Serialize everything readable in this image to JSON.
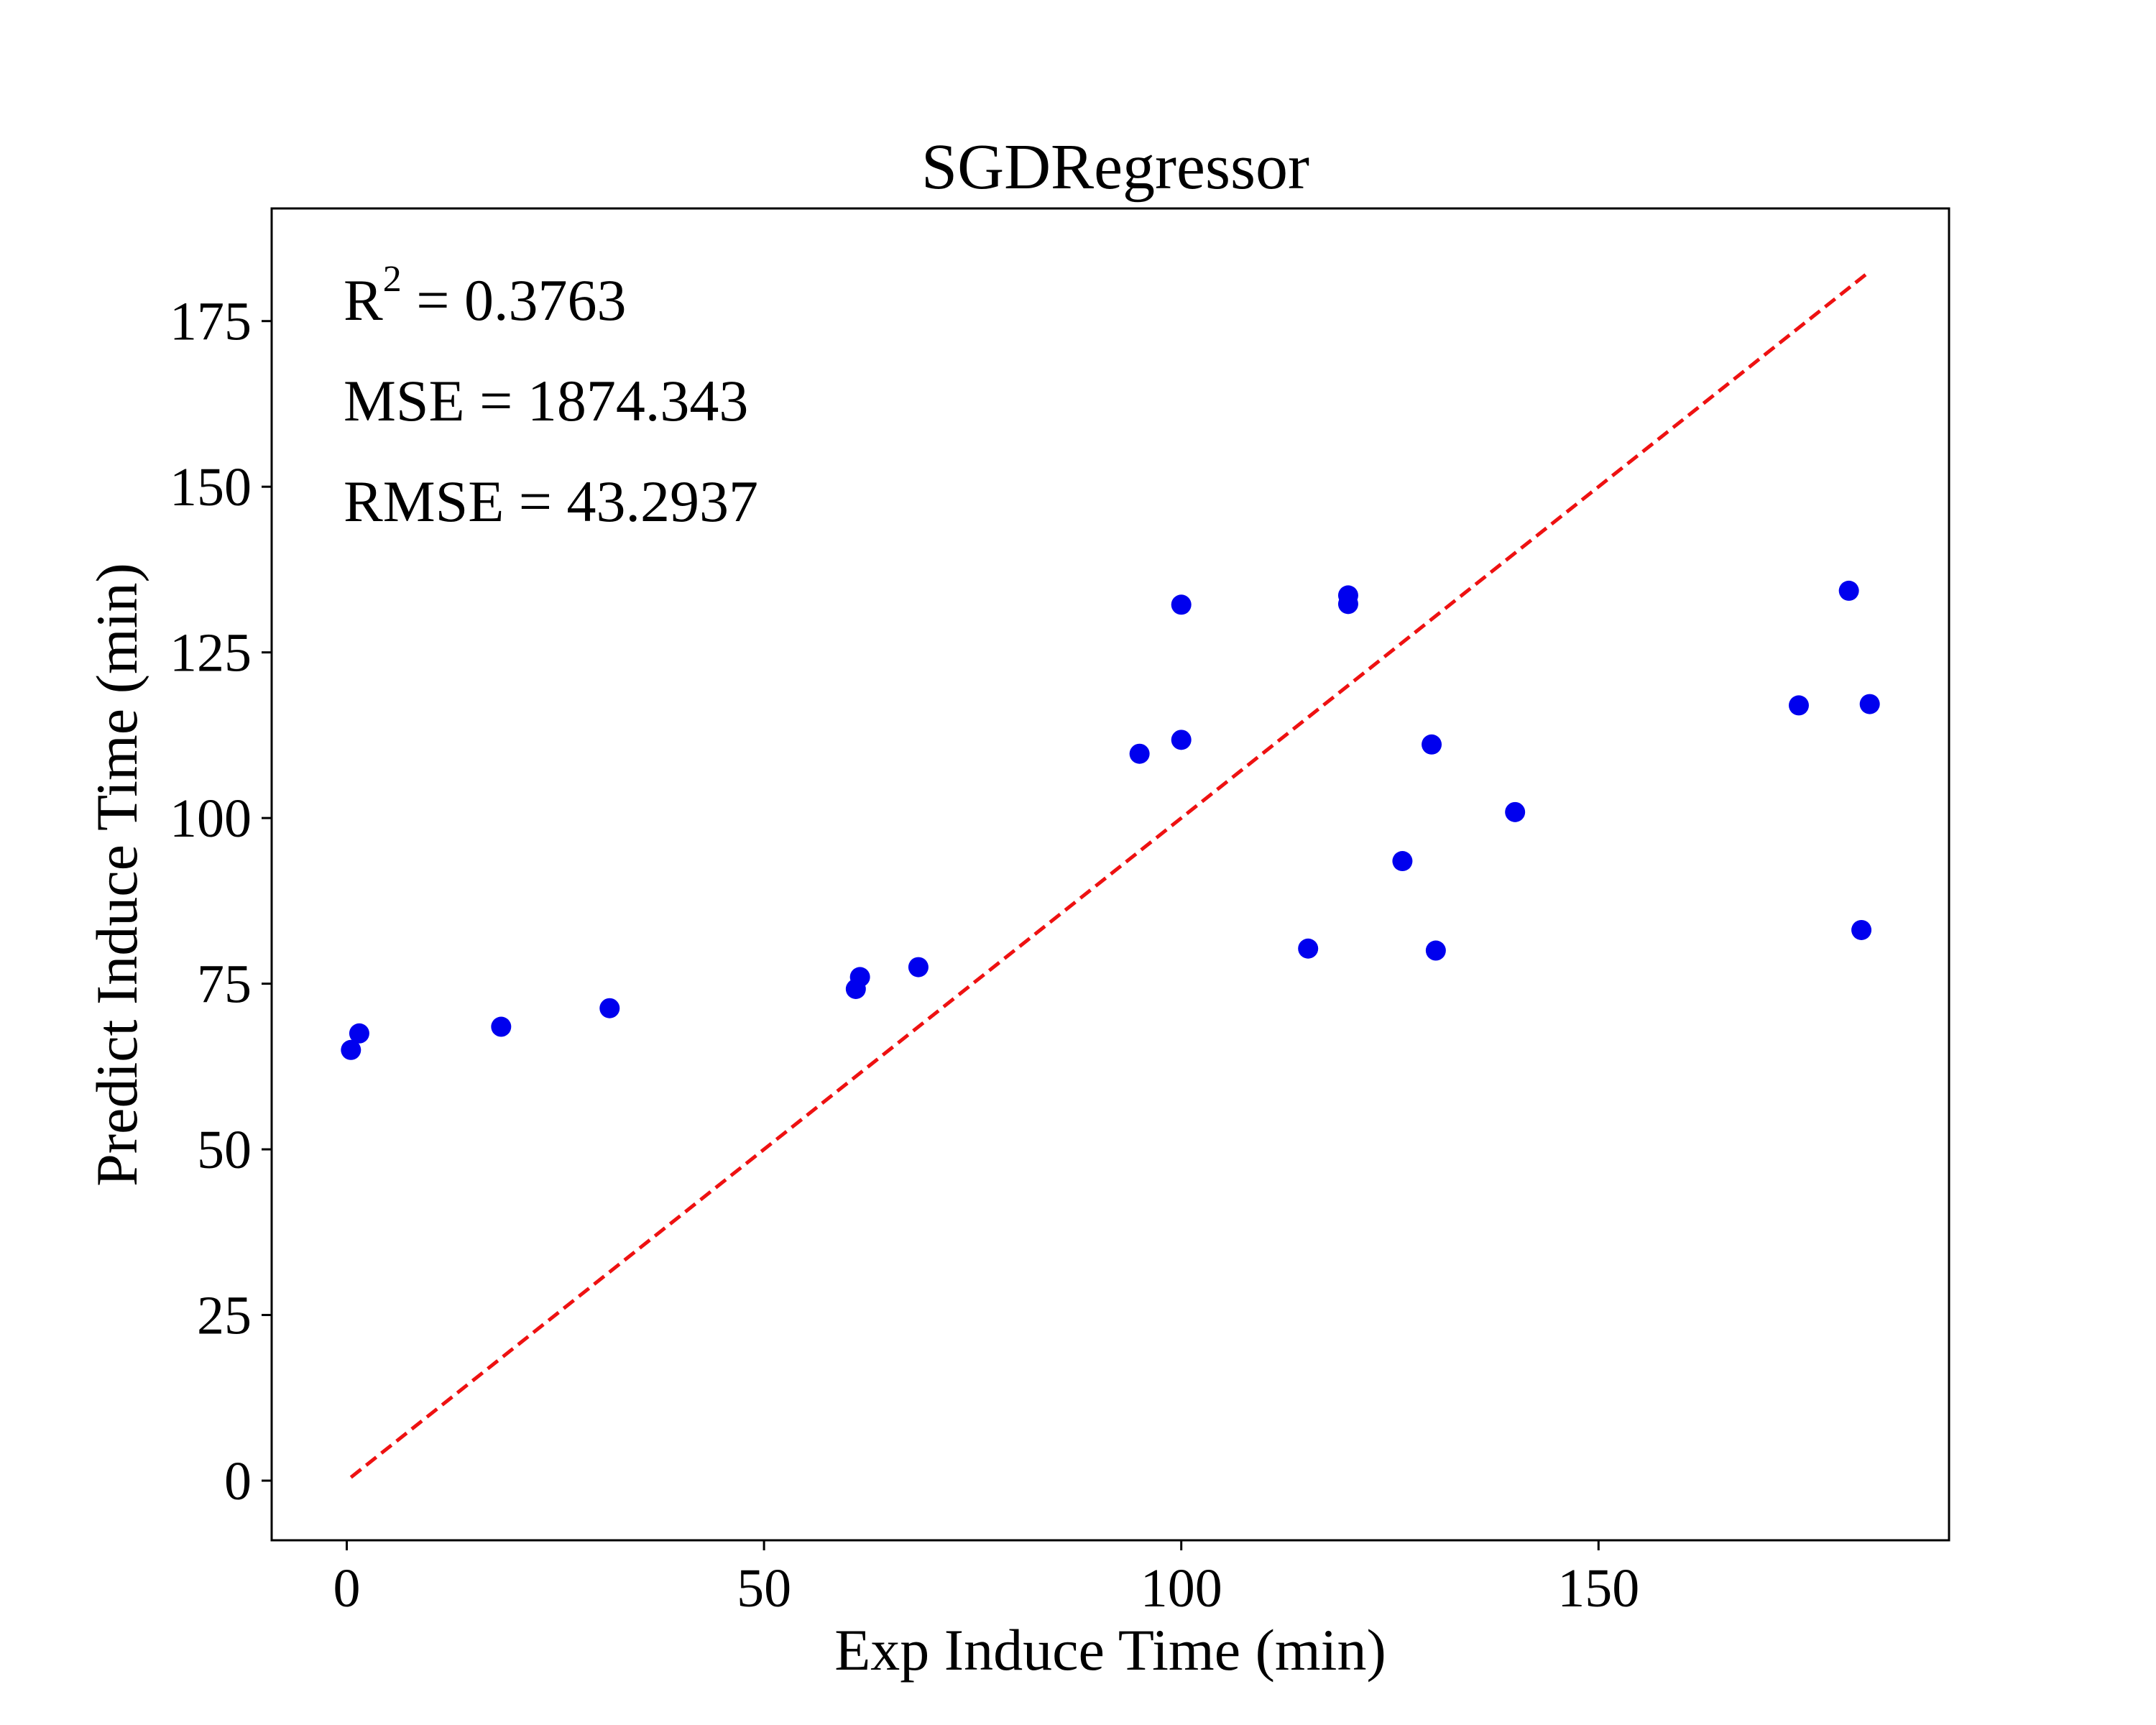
{
  "chart_data": {
    "type": "scatter",
    "title": "SGDRegressor",
    "xlabel": "Exp Induce Time (min)",
    "ylabel": "Predict Induce Time (min)",
    "xlim": [
      -9,
      192
    ],
    "ylim": [
      -9,
      192
    ],
    "xticks": [
      0,
      50,
      100,
      150
    ],
    "yticks": [
      0,
      25,
      50,
      75,
      100,
      125,
      150,
      175
    ],
    "grid": false,
    "annotations": {
      "r2_prefix": "R",
      "r2_sup": "2",
      "r2_value": " = 0.3763",
      "mse": "MSE = 1874.343",
      "rmse": "RMSE = 43.2937"
    },
    "reference_line": {
      "x": [
        0.5,
        182.5
      ],
      "y": [
        0.5,
        182.5
      ],
      "color": "#ee1111",
      "style": "dashed"
    },
    "point_color": "#0000ee",
    "points": [
      {
        "x": 0.5,
        "y": 65
      },
      {
        "x": 1.5,
        "y": 67.5
      },
      {
        "x": 18.5,
        "y": 68.5
      },
      {
        "x": 31.5,
        "y": 71.3
      },
      {
        "x": 61,
        "y": 74.2
      },
      {
        "x": 61.5,
        "y": 76
      },
      {
        "x": 68.5,
        "y": 77.5
      },
      {
        "x": 95,
        "y": 109.7
      },
      {
        "x": 100,
        "y": 111.8
      },
      {
        "x": 100,
        "y": 132.2
      },
      {
        "x": 115.2,
        "y": 80.3
      },
      {
        "x": 120,
        "y": 132.3
      },
      {
        "x": 120,
        "y": 133.6
      },
      {
        "x": 126.5,
        "y": 93.5
      },
      {
        "x": 130,
        "y": 111.1
      },
      {
        "x": 130.5,
        "y": 80
      },
      {
        "x": 140,
        "y": 100.9
      },
      {
        "x": 174,
        "y": 117
      },
      {
        "x": 180,
        "y": 134.3
      },
      {
        "x": 181.5,
        "y": 83.1
      },
      {
        "x": 182.5,
        "y": 117.2
      }
    ]
  }
}
